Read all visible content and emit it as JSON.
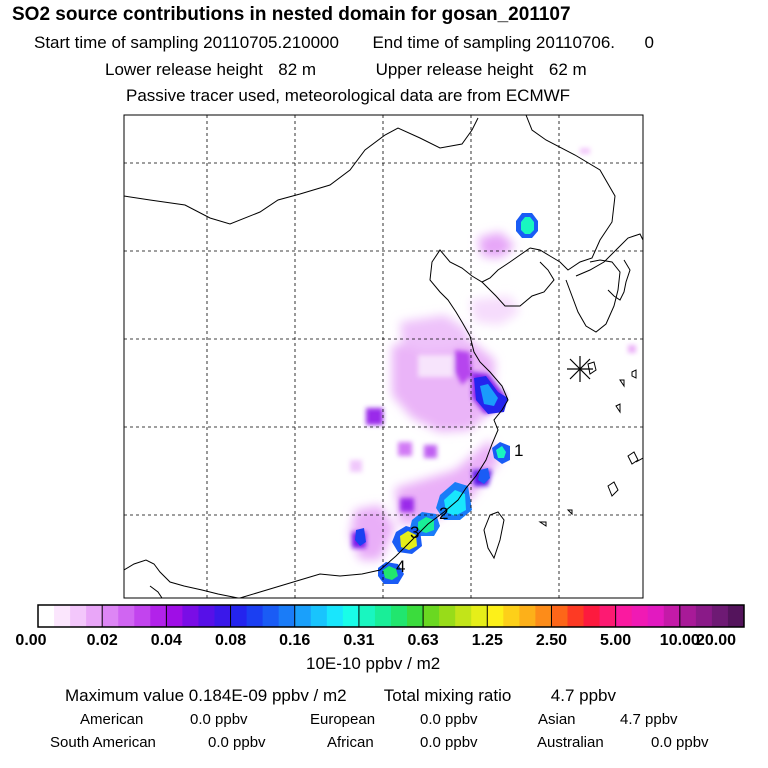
{
  "header": {
    "title": "SO2 source contributions in nested domain for gosan_201107",
    "start_label": "Start time of sampling",
    "start_value": "20110705.210000",
    "end_label": "End time of sampling",
    "end_value": "20110706.",
    "end_suffix": "0",
    "lower_label": "Lower release height",
    "lower_value": "82 m",
    "upper_label": "Upper release height",
    "upper_value": "62 m",
    "tracer_note": "Passive tracer used, meteorological data are from ECMWF"
  },
  "map": {
    "station_marker": "asterisk-icon",
    "source_labels": [
      "1",
      "2",
      "3",
      "4"
    ]
  },
  "colorbar": {
    "ticks": [
      "0.00",
      "0.02",
      "0.04",
      "0.08",
      "0.16",
      "0.31",
      "0.63",
      "1.25",
      "2.50",
      "5.00",
      "10.00",
      "20.00"
    ],
    "colors": [
      "#ffffff",
      "#fbe6fd",
      "#f3c7fb",
      "#e9a6f8",
      "#dd86f5",
      "#d065f2",
      "#c244ee",
      "#b222ea",
      "#9f0ee6",
      "#7a0de6",
      "#5710e8",
      "#3a18ea",
      "#2424ee",
      "#1b3ff2",
      "#1a5cf5",
      "#1a7cf8",
      "#1aa0fb",
      "#19c4fd",
      "#19e6fd",
      "#19fde8",
      "#19f6c0",
      "#19ee98",
      "#21e66e",
      "#3bdc3d",
      "#6ad821",
      "#98dc19",
      "#c2e419",
      "#e6ee19",
      "#fdf019",
      "#fdd019",
      "#fdb019",
      "#fd8c19",
      "#fd6619",
      "#fd3a24",
      "#fd1a3e",
      "#fd1a72",
      "#fa1aa0",
      "#f01ab4",
      "#e21ac0",
      "#c41aa8",
      "#a81a98",
      "#8a1a88",
      "#6e1a74",
      "#54145c"
    ],
    "units": "10E-10 ppbv / m2"
  },
  "summary": {
    "max_label": "Maximum value",
    "max_value": "0.184E-09 ppbv / m2",
    "total_label": "Total mixing ratio",
    "total_value": "4.7 ppbv",
    "regions": [
      {
        "name": "American",
        "value": "0.0 ppbv"
      },
      {
        "name": "European",
        "value": "0.0 ppbv"
      },
      {
        "name": "Asian",
        "value": "4.7 ppbv"
      },
      {
        "name": "South American",
        "value": "0.0 ppbv"
      },
      {
        "name": "African",
        "value": "0.0 ppbv"
      },
      {
        "name": "Australian",
        "value": "0.0 ppbv"
      }
    ]
  }
}
